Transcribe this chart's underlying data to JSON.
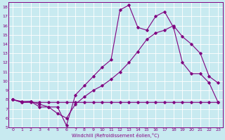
{
  "xlabel": "Windchill (Refroidissement éolien,°C)",
  "background_color": "#c8eaf0",
  "grid_color": "#ffffff",
  "line_color": "#800080",
  "line_color2": "#cc00cc",
  "xlim": [
    -0.5,
    23.5
  ],
  "ylim": [
    5,
    18.5
  ],
  "xticks": [
    0,
    1,
    2,
    3,
    4,
    5,
    6,
    7,
    8,
    9,
    10,
    11,
    12,
    13,
    14,
    15,
    16,
    17,
    18,
    19,
    20,
    21,
    22,
    23
  ],
  "yticks": [
    5,
    6,
    7,
    8,
    9,
    10,
    11,
    12,
    13,
    14,
    15,
    16,
    17,
    18
  ],
  "line_flat_x": [
    0,
    1,
    2,
    3,
    4,
    5,
    6,
    7,
    8,
    9,
    10,
    11,
    12,
    13,
    14,
    15,
    16,
    17,
    18,
    19,
    20,
    21,
    22,
    23
  ],
  "line_flat_y": [
    8.0,
    7.7,
    7.7,
    7.7,
    7.7,
    7.7,
    7.7,
    7.7,
    7.7,
    7.7,
    7.7,
    7.7,
    7.7,
    7.7,
    7.7,
    7.7,
    7.7,
    7.7,
    7.7,
    7.7,
    7.7,
    7.7,
    7.7,
    7.7
  ],
  "line_peak_x": [
    0,
    1,
    2,
    3,
    4,
    5,
    6,
    7,
    8,
    9,
    10,
    11,
    12,
    13,
    14,
    15,
    16,
    17,
    18,
    19,
    20,
    21,
    22,
    23
  ],
  "line_peak_y": [
    8.0,
    7.7,
    7.8,
    7.2,
    7.2,
    7.2,
    5.2,
    8.5,
    9.5,
    10.5,
    11.5,
    12.3,
    17.7,
    18.2,
    15.8,
    15.5,
    17.0,
    17.5,
    15.8,
    12.0,
    10.8,
    10.8,
    9.8,
    7.7
  ],
  "line_grad_x": [
    0,
    1,
    2,
    3,
    4,
    5,
    6,
    7,
    8,
    9,
    10,
    11,
    12,
    13,
    14,
    15,
    16,
    17,
    18,
    19,
    20,
    21,
    22,
    23
  ],
  "line_grad_y": [
    8.0,
    7.8,
    7.8,
    7.5,
    7.2,
    6.5,
    6.0,
    7.5,
    8.3,
    9.0,
    9.5,
    10.2,
    11.0,
    12.0,
    13.2,
    14.5,
    15.2,
    15.5,
    16.0,
    14.8,
    14.0,
    13.0,
    10.5,
    9.8
  ]
}
